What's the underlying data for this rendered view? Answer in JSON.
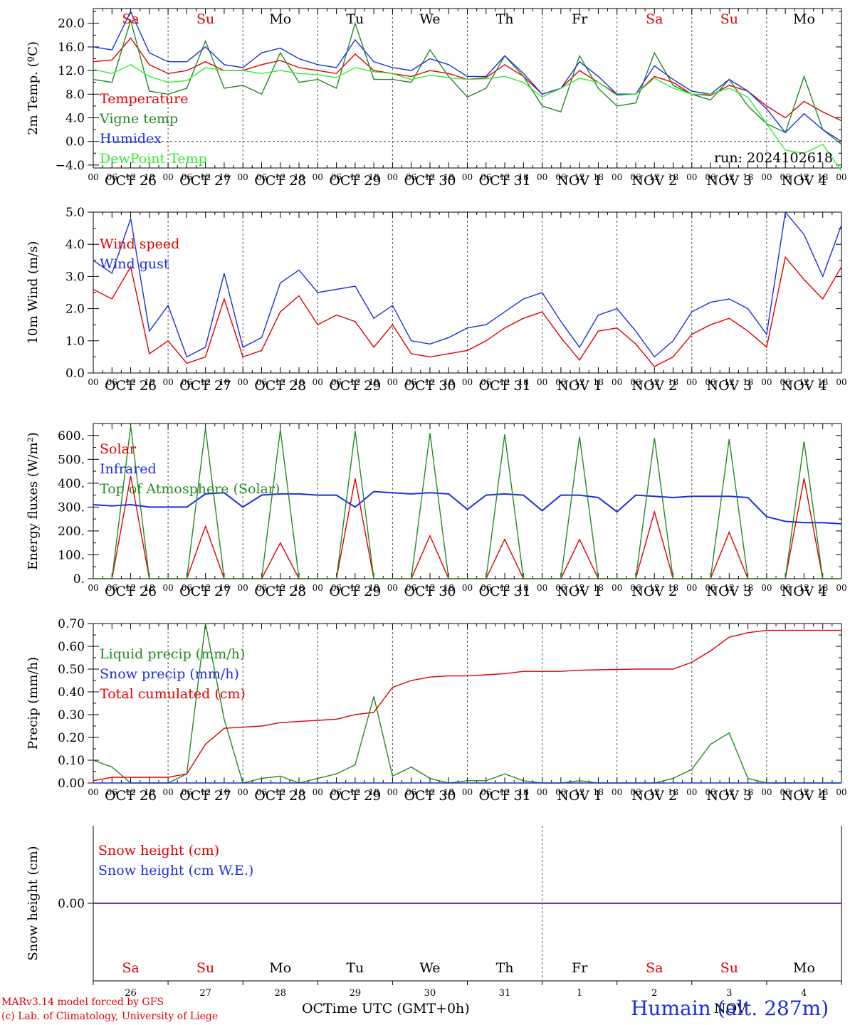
{
  "run_label": "run: 2024102618",
  "days": [
    "Sa",
    "Su",
    "Mo",
    "Tu",
    "We",
    "Th",
    "Fr",
    "Sa",
    "Su",
    "Mo"
  ],
  "weekend_color": "#e00000",
  "date_labels": [
    "OCT 26",
    "OCT 27",
    "OCT 28",
    "OCT 29",
    "OCT 30",
    "OCT 31",
    "NOV  1",
    "NOV  2",
    "NOV  3",
    "NOV  4"
  ],
  "bottom_day_numbers": [
    "26",
    "27",
    "28",
    "29",
    "30",
    "31",
    "1",
    "2",
    "3",
    "4"
  ],
  "hour_ticks": [
    "00",
    "06",
    "12",
    "18"
  ],
  "x_axis_title": "Time UTC (GMT+0h)",
  "month_labels": [
    "OCT",
    "NOV"
  ],
  "credit_lines": [
    "MARv3.14 model forced by GFS",
    "(c) Lab. of Climatology, University of Liege"
  ],
  "station": "Humain (alt. 287m)",
  "chart_data": [
    {
      "id": "temperature",
      "type": "line",
      "ylabel": "2m Temp. (ºC)",
      "ylim": [
        -4.5,
        22.5
      ],
      "yticks": [
        -4,
        0,
        4,
        8,
        12,
        16,
        20
      ],
      "ytick_labels": [
        "−4.0",
        "0.0",
        "4.0",
        "8.0",
        "12.0",
        "16.0",
        "20.0"
      ],
      "zero_line": true,
      "x_hours": [
        0,
        6,
        12,
        18,
        24,
        30,
        36,
        42,
        48,
        54,
        60,
        66,
        72,
        78,
        84,
        90,
        96,
        102,
        108,
        114,
        120,
        126,
        132,
        138,
        144,
        150,
        156,
        162,
        168,
        174,
        180,
        186,
        192,
        198,
        204,
        210,
        216,
        222,
        228,
        234,
        240
      ],
      "series": [
        {
          "name": "Temperature",
          "color": "#e00000",
          "values": [
            13.5,
            13.8,
            17.5,
            13.0,
            11.5,
            12.0,
            13.5,
            12.0,
            12.0,
            13.0,
            13.7,
            12.5,
            12.0,
            11.5,
            14.8,
            12.0,
            11.5,
            11.0,
            12.0,
            11.5,
            10.5,
            10.8,
            13.0,
            11.0,
            8.0,
            9.0,
            12.0,
            10.0,
            8.0,
            8.0,
            11.0,
            10.0,
            8.0,
            7.8,
            9.5,
            8.5,
            6.0,
            4.0,
            6.8,
            5.0,
            3.5
          ]
        },
        {
          "name": "Vigne temp",
          "color": "#228b22",
          "values": [
            10.5,
            10.0,
            20.5,
            8.5,
            8.0,
            9.0,
            17.0,
            9.0,
            9.5,
            8.0,
            15.0,
            10.0,
            10.5,
            9.0,
            20.0,
            10.5,
            10.5,
            10.0,
            15.5,
            11.0,
            7.5,
            9.0,
            14.5,
            11.0,
            6.0,
            5.0,
            14.5,
            9.0,
            6.0,
            6.5,
            15.0,
            9.5,
            8.0,
            7.0,
            10.5,
            6.0,
            3.0,
            1.5,
            11.0,
            2.0,
            -0.5
          ]
        },
        {
          "name": "Humidex",
          "color": "#1c2fe0",
          "values": [
            16.0,
            15.5,
            22.0,
            15.0,
            13.5,
            13.5,
            16.0,
            13.0,
            12.5,
            15.0,
            15.8,
            14.0,
            13.0,
            12.5,
            17.2,
            13.5,
            12.5,
            12.0,
            14.0,
            13.0,
            11.0,
            11.0,
            14.5,
            11.5,
            8.0,
            9.0,
            13.5,
            11.0,
            8.0,
            8.0,
            12.8,
            10.5,
            8.5,
            8.0,
            10.5,
            8.5,
            5.5,
            1.5,
            4.7,
            2.0,
            0.0
          ]
        },
        {
          "name": "DewPoint Temp",
          "color": "#33ee33",
          "values": [
            12.2,
            11.5,
            13.0,
            11.0,
            10.0,
            10.3,
            12.5,
            12.0,
            12.0,
            11.5,
            12.0,
            11.5,
            11.3,
            10.8,
            12.5,
            11.8,
            11.5,
            10.5,
            11.2,
            10.8,
            10.5,
            10.6,
            11.0,
            10.0,
            7.5,
            9.0,
            10.7,
            10.0,
            7.8,
            8.0,
            10.7,
            9.0,
            8.0,
            8.0,
            9.0,
            7.5,
            3.0,
            -1.5,
            -2.0,
            -0.5,
            -5.0
          ]
        }
      ]
    },
    {
      "id": "wind",
      "type": "line",
      "ylabel": "10m Wind (m/s)",
      "ylim": [
        0,
        5.0
      ],
      "yticks": [
        0,
        1,
        2,
        3,
        4,
        5
      ],
      "ytick_labels": [
        "0.0",
        "1.0",
        "2.0",
        "3.0",
        "4.0",
        "5.0"
      ],
      "x_hours": [
        0,
        6,
        12,
        18,
        24,
        30,
        36,
        42,
        48,
        54,
        60,
        66,
        72,
        78,
        84,
        90,
        96,
        102,
        108,
        114,
        120,
        126,
        132,
        138,
        144,
        150,
        156,
        162,
        168,
        174,
        180,
        186,
        192,
        198,
        204,
        210,
        216,
        222,
        228,
        234,
        240
      ],
      "series": [
        {
          "name": "Wind speed",
          "color": "#e00000",
          "values": [
            2.6,
            2.3,
            3.3,
            0.6,
            1.0,
            0.3,
            0.5,
            2.3,
            0.5,
            0.7,
            1.9,
            2.4,
            1.5,
            1.8,
            1.6,
            0.8,
            1.5,
            0.6,
            0.5,
            0.6,
            0.7,
            1.0,
            1.4,
            1.7,
            1.9,
            1.1,
            0.4,
            1.3,
            1.4,
            0.9,
            0.2,
            0.5,
            1.2,
            1.5,
            1.7,
            1.3,
            0.8,
            3.6,
            2.9,
            2.3,
            3.3
          ]
        },
        {
          "name": "Wind gust",
          "color": "#1c2fe0",
          "values": [
            3.5,
            3.1,
            4.8,
            1.3,
            2.1,
            0.5,
            0.8,
            3.1,
            0.8,
            1.1,
            2.8,
            3.2,
            2.5,
            2.6,
            2.7,
            1.7,
            2.1,
            1.0,
            0.9,
            1.1,
            1.4,
            1.5,
            1.9,
            2.3,
            2.5,
            1.6,
            0.8,
            1.8,
            2.0,
            1.3,
            0.5,
            1.0,
            1.9,
            2.2,
            2.3,
            2.0,
            1.2,
            5.0,
            4.3,
            3.0,
            4.6
          ]
        }
      ]
    },
    {
      "id": "energy",
      "type": "line",
      "ylabel": "Energy fluxes (W/m²)",
      "ylim": [
        0,
        650
      ],
      "yticks": [
        0,
        100,
        200,
        300,
        400,
        500,
        600
      ],
      "ytick_labels": [
        "0.",
        "100.",
        "200.",
        "300.",
        "400.",
        "500.",
        "600."
      ],
      "x_hours": [
        0,
        6,
        12,
        18,
        24,
        30,
        36,
        42,
        48,
        54,
        60,
        66,
        72,
        78,
        84,
        90,
        96,
        102,
        108,
        114,
        120,
        126,
        132,
        138,
        144,
        150,
        156,
        162,
        168,
        174,
        180,
        186,
        192,
        198,
        204,
        210,
        216,
        222,
        228,
        234,
        240
      ],
      "series": [
        {
          "name": "Solar",
          "color": "#e00000",
          "values": [
            0,
            0,
            430,
            0,
            0,
            0,
            220,
            0,
            0,
            0,
            150,
            0,
            0,
            0,
            420,
            0,
            0,
            0,
            180,
            0,
            0,
            0,
            165,
            0,
            0,
            0,
            165,
            0,
            0,
            0,
            280,
            0,
            0,
            0,
            195,
            0,
            0,
            0,
            420,
            0,
            0
          ]
        },
        {
          "name": "Infrared",
          "color": "#1c2fe0",
          "values": [
            310,
            305,
            310,
            300,
            300,
            300,
            355,
            360,
            300,
            350,
            355,
            355,
            350,
            350,
            300,
            365,
            360,
            355,
            360,
            355,
            290,
            350,
            355,
            350,
            285,
            350,
            350,
            340,
            280,
            350,
            345,
            340,
            345,
            345,
            345,
            340,
            260,
            240,
            235,
            235,
            230
          ]
        },
        {
          "name": "Top of Atmosphere (Solar)",
          "color": "#228b22",
          "values": [
            0,
            0,
            640,
            0,
            0,
            0,
            630,
            0,
            0,
            0,
            625,
            0,
            0,
            0,
            620,
            0,
            0,
            0,
            610,
            0,
            0,
            0,
            605,
            0,
            0,
            0,
            595,
            0,
            0,
            0,
            590,
            0,
            0,
            0,
            585,
            0,
            0,
            0,
            575,
            0,
            0
          ]
        }
      ]
    },
    {
      "id": "precip",
      "type": "line",
      "ylabel": "Precip (mm/h)",
      "ylim": [
        0,
        0.7
      ],
      "yticks": [
        0,
        0.1,
        0.2,
        0.3,
        0.4,
        0.5,
        0.6,
        0.7
      ],
      "ytick_labels": [
        "0.00",
        "0.10",
        "0.20",
        "0.30",
        "0.40",
        "0.50",
        "0.60",
        "0.70"
      ],
      "x_hours": [
        0,
        6,
        12,
        18,
        24,
        30,
        36,
        42,
        48,
        54,
        60,
        66,
        72,
        78,
        84,
        90,
        96,
        102,
        108,
        114,
        120,
        126,
        132,
        138,
        144,
        150,
        156,
        162,
        168,
        174,
        180,
        186,
        192,
        198,
        204,
        210,
        216,
        222,
        228,
        234,
        240
      ],
      "series": [
        {
          "name": "Liquid precip (mm/h)",
          "color": "#228b22",
          "values": [
            0.1,
            0.07,
            0.0,
            0.0,
            0.0,
            0.04,
            0.7,
            0.28,
            0.0,
            0.02,
            0.03,
            0.0,
            0.02,
            0.04,
            0.08,
            0.38,
            0.03,
            0.07,
            0.02,
            0.0,
            0.01,
            0.01,
            0.04,
            0.01,
            0.0,
            0.0,
            0.01,
            0.0,
            0.0,
            0.0,
            0.0,
            0.02,
            0.06,
            0.17,
            0.22,
            0.02,
            0.0,
            0.0,
            0.0,
            0.0,
            0.0
          ]
        },
        {
          "name": "Snow precip (mm/h)",
          "color": "#1c2fe0",
          "values": [
            0,
            0,
            0,
            0,
            0,
            0,
            0,
            0,
            0,
            0,
            0,
            0,
            0,
            0,
            0,
            0,
            0,
            0,
            0,
            0,
            0,
            0,
            0,
            0,
            0,
            0,
            0,
            0,
            0,
            0,
            0,
            0,
            0,
            0,
            0,
            0,
            0,
            0,
            0,
            0,
            0
          ]
        },
        {
          "name": "Total cumulated (cm)",
          "color": "#e00000",
          "values": [
            0.01,
            0.025,
            0.025,
            0.025,
            0.025,
            0.04,
            0.17,
            0.24,
            0.245,
            0.25,
            0.265,
            0.27,
            0.275,
            0.28,
            0.3,
            0.31,
            0.42,
            0.45,
            0.465,
            0.47,
            0.47,
            0.475,
            0.48,
            0.49,
            0.49,
            0.49,
            0.495,
            0.497,
            0.498,
            0.5,
            0.5,
            0.5,
            0.53,
            0.58,
            0.64,
            0.66,
            0.67,
            0.67,
            0.67,
            0.67,
            0.67
          ]
        }
      ]
    },
    {
      "id": "snow",
      "type": "line",
      "ylabel": "Snow height (cm)",
      "ylim": [
        -1,
        1
      ],
      "yticks": [
        0
      ],
      "ytick_labels": [
        "0.00"
      ],
      "x_hours": [
        0,
        240
      ],
      "series": [
        {
          "name": "Snow height (cm)",
          "color": "#e00000",
          "values": [
            0,
            0
          ]
        },
        {
          "name": "Snow height (cm W.E.)",
          "color": "#1c2fe0",
          "values": [
            0,
            0
          ]
        }
      ]
    }
  ]
}
